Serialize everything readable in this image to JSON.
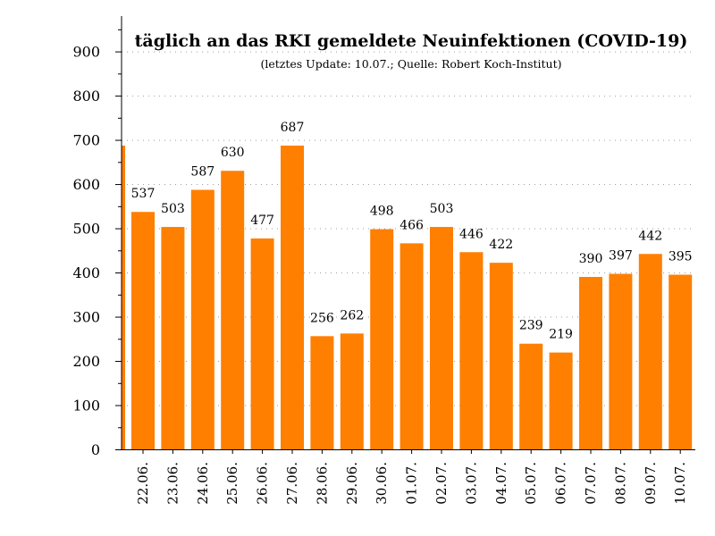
{
  "chart_data": {
    "type": "bar",
    "title": "täglich an das RKI gemeldete Neuinfektionen (COVID-19)",
    "subtitle": "(letztes Update: 10.07.; Quelle: Robert Koch-Institut)",
    "xlabel": "",
    "ylabel": "",
    "categories": [
      "22.06.",
      "23.06.",
      "24.06.",
      "25.06.",
      "26.06.",
      "27.06.",
      "28.06.",
      "29.06.",
      "30.06.",
      "01.07.",
      "02.07.",
      "03.07.",
      "04.07.",
      "05.07.",
      "06.07.",
      "07.07.",
      "08.07.",
      "09.07.",
      "10.07."
    ],
    "values": [
      537,
      503,
      587,
      630,
      477,
      687,
      256,
      262,
      498,
      466,
      503,
      446,
      422,
      239,
      219,
      390,
      397,
      442,
      395
    ],
    "leading_partial_value": 687,
    "ylim": [
      0,
      980
    ],
    "yticks": [
      0,
      100,
      200,
      300,
      400,
      500,
      600,
      700,
      800,
      900
    ],
    "bar_color": "#ff7f00",
    "grid": true,
    "legend": "none"
  }
}
